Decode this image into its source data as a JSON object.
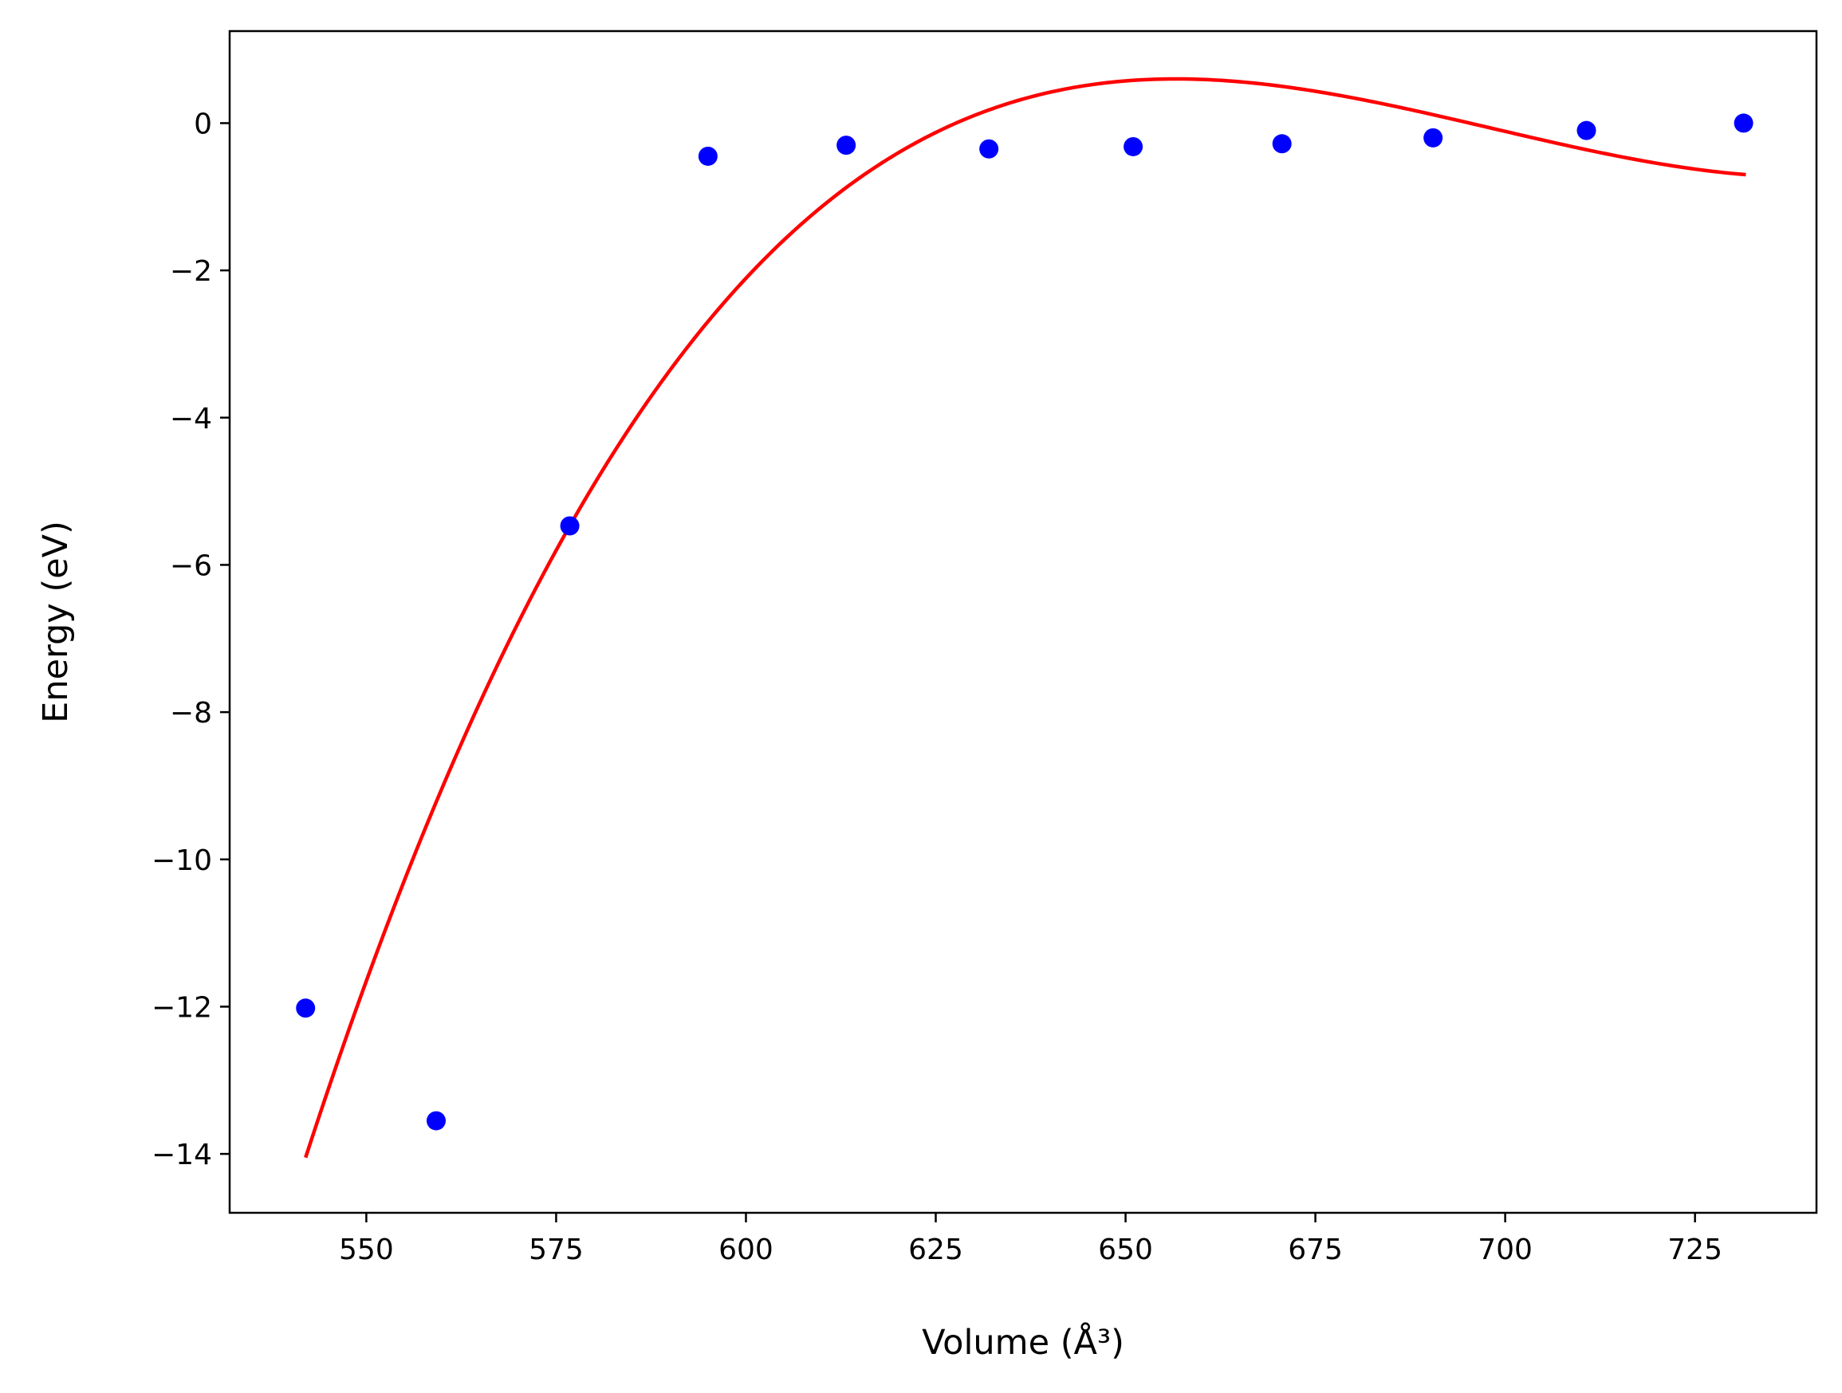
{
  "chart_data": {
    "type": "scatter",
    "xlabel": "Volume (Å³)",
    "ylabel": "Energy (eV)",
    "xlim": [
      532,
      741
    ],
    "ylim": [
      -14.8,
      1.25
    ],
    "x_ticks": [
      550,
      575,
      600,
      625,
      650,
      675,
      700,
      725
    ],
    "y_ticks": [
      0,
      -2,
      -4,
      -6,
      -8,
      -10,
      -12,
      -14
    ],
    "x_tick_labels": [
      "550",
      "575",
      "600",
      "625",
      "650",
      "675",
      "700",
      "725"
    ],
    "y_tick_labels": [
      "0",
      "−2",
      "−4",
      "−6",
      "−8",
      "−10",
      "−12",
      "−14"
    ],
    "grid": false,
    "legend": "none",
    "series": [
      {
        "kind": "scatter",
        "color": "#0000ff",
        "x": [
          542.0,
          559.2,
          576.8,
          595.0,
          613.2,
          632.0,
          651.0,
          670.6,
          690.5,
          710.7,
          731.4
        ],
        "y": [
          -12.02,
          -13.55,
          -5.47,
          -0.45,
          -0.3,
          -0.35,
          -0.32,
          -0.28,
          -0.2,
          -0.1,
          0.0
        ]
      },
      {
        "kind": "line",
        "color": "#ff0000",
        "fit": "cubic",
        "x_start": 542.0,
        "x_end": 731.7,
        "anchor_points": [
          [
            542.0,
            -14.05
          ],
          [
            576.8,
            -5.47
          ],
          [
            669.0,
            0.52
          ],
          [
            731.7,
            -0.7
          ]
        ]
      }
    ]
  }
}
